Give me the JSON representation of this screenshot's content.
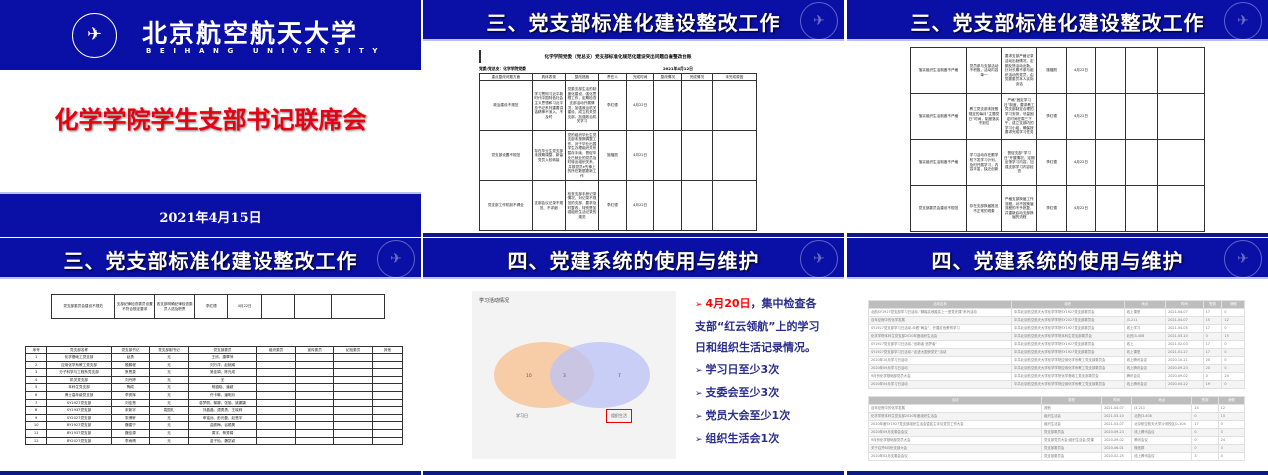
{
  "slide1": {
    "university_cn": "北京航空航天大学",
    "university_en": "BEIHANG UNIVERSITY",
    "title": "化学学院学生支部书记联席会",
    "date": "2021年4月15日",
    "colors": {
      "band": "#0a0fa6",
      "title": "#e60012"
    }
  },
  "slide2": {
    "header": "三、党支部标准化建设整改工作",
    "doc_title": "化学学院党委（党总支）党支部标准化规范化建设突出问题自查整改台账",
    "unit": "党委/党总支：化学学院党委",
    "doc_date": "2021年4月12日",
    "columns": [
      "重点整改问题方面",
      "具体表现",
      "整改措施",
      "责任人",
      "完成时间",
      "整改情况",
      "完成情况",
      "未完成原因"
    ],
    "rows": [
      [
        "政治建设不规范",
        "学习贯彻习近平新时代中国特色社会主义思想和习近平总书记系列重要讲话精神不深入、不及时",
        "党委支部生活的制度化建设，强化思想工作，定期检查支部活动开展情况，加强政治机关建设，成立机关党支部，加强政治机关学习",
        "李红德",
        "4月22日",
        "",
        "",
        ""
      ],
      [
        "党支部设置不规范",
        "存在毕业生党支部未按期调整、新留党员入校转接",
        "党的组织毕业生党支部未按期调整工作，对于毕业出国学生办理组织关系暂存手续，督促毕业已就业的党员及时转出组织关系，并核党员e先锋上的所在数据更新工作",
        "施福丽",
        "4月22日",
        "",
        "",
        ""
      ],
      [
        "党支部工作机制不健全",
        "支部会议记录不规范、不详细",
        "检查支部手册记录情况，对记录不规范的支部，要求及时整改，特别是加强组织生活记录的规范",
        "李红德",
        "4月22日",
        "",
        "",
        ""
      ]
    ]
  },
  "slide3": {
    "header": "三、党支部标准化建设整改工作",
    "rows": [
      [
        "落实组织生活制度不严格",
        "党员参与支部活动不积极，活动内容单一",
        "要求支部严格记录活动出勤情况，定期反馈活动出勤，针对长期不参与组织活动的党员，由党委委员本人实际谈话",
        "施福丽",
        "4月22日",
        "",
        "",
        ""
      ],
      [
        "落实组织生活制度不严格",
        "教工党支部未按照规定的每月“主题党日”时间，制度落实不到位",
        "严格“固定学习日”制度，要求教工党支部制定合理的学习安排，尽量固定时间在周三下午，成立支部内的学习小组，确保按要求完成学习任务",
        "李红德",
        "4月22日",
        "",
        "",
        ""
      ],
      [
        "落实组织生活制度不严格",
        "学习活动存在跟学校下发学习计划，及时开展学习，内容丰富，缺乏创新",
        "督促支部“学习日”开展情况，定期反馈学习内容，加强支部学习内容检查",
        "李红德",
        "4月22日",
        "",
        "",
        ""
      ],
      [
        "党支部委员会建设不规范",
        "存在支部换届推迟不正常的现象",
        "严格支部换届工作流程，对不按换届流程的不予批复，并重新启动支部换届的流程",
        "李红德",
        "4月22日",
        "",
        "",
        ""
      ]
    ]
  },
  "slide4": {
    "header": "三、党支部标准化建设整改工作",
    "top_row": [
      "党支部委员会建设不规范",
      "支部纪律检查委员设置不符合规定要求",
      "各支部明确纪律检查委员人选及职责",
      "李红德",
      "4月22日",
      "",
      "",
      ""
    ],
    "columns": [
      "序号",
      "党支部名称",
      "党支部书记",
      "党支部副书记",
      "党支部委员",
      "组织委员",
      "宣传委员",
      "纪检委员",
      "其他"
    ],
    "rows": [
      [
        "1",
        "化学基础工党支部",
        "赵勇",
        "无",
        "王欣、唐翠萍",
        "",
        "",
        "",
        ""
      ],
      [
        "2",
        "应用化学系教工党支部",
        "殷鹏程",
        "无",
        "刘万洋、赵婉威",
        "",
        "",
        "",
        ""
      ],
      [
        "3",
        "分子科学与工程系党支部",
        "蔡恩泉",
        "无",
        "吴佳娟、陈光成",
        "",
        "",
        "",
        ""
      ],
      [
        "4",
        "机关党支部",
        "刘丹婷",
        "无",
        "无",
        "",
        "",
        "",
        ""
      ],
      [
        "5",
        "本科生党支部",
        "陶成",
        "无",
        "杨潞晓、潘颖",
        "",
        "",
        "",
        ""
      ],
      [
        "6",
        "博士高年级党支部",
        "李秀辉",
        "无",
        "许卡琳、潘明月",
        "",
        "",
        "",
        ""
      ],
      [
        "7",
        "SY1927党支部",
        "刘佳慧",
        "无",
        "葛梦丽、黎娜、张旭、姚娜婕",
        "",
        "",
        "",
        ""
      ],
      [
        "8",
        "SY1937党支部",
        "宋新宇",
        "袁国礼",
        "刘晶晶、谭勇勇、王晓莉",
        "",
        "",
        "",
        ""
      ],
      [
        "9",
        "SY2027党支部",
        "张博轩",
        "无",
        "申铭远、彭光磊、赵慧宇",
        "",
        "",
        "",
        ""
      ],
      [
        "10",
        "BY1927党支部",
        "魏建宁",
        "无",
        "曲秀梅、谷顺昊",
        "",
        "",
        "",
        ""
      ],
      [
        "11",
        "BY1937党支部",
        "魏佳源",
        "无",
        "周宇、蔡秀娟",
        "",
        "",
        "",
        ""
      ],
      [
        "12",
        "BY2027党支部",
        "李雨晴",
        "无",
        "苗子怡、魏凯颖",
        "",
        "",
        "",
        ""
      ]
    ]
  },
  "slide5": {
    "header": "四、党建系统的使用与维护",
    "chart_data": {
      "type": "venn",
      "title": "学习活动情况",
      "sets": [
        {
          "name": "学习日",
          "only": 10,
          "color": "#f8c08f"
        },
        {
          "name": "组织生活",
          "only": 7,
          "color": "#b9c2f5"
        }
      ],
      "intersection": 3
    },
    "bullets": [
      {
        "arrow": "➢",
        "date": "4月20日",
        "text": "，集中检查各支部“红云领航”上的学习日和组织生活记录情况。"
      },
      {
        "arrow": "➢",
        "text": "学习日至少3次"
      },
      {
        "arrow": "➢",
        "text": "支委会至少3次"
      },
      {
        "arrow": "➢",
        "text": "党员大会至少1次"
      },
      {
        "arrow": "➢",
        "text": "组织生活会1次"
      }
    ],
    "colors": {
      "text": "#2a2e8c",
      "date": "#ff0000"
    }
  },
  "slide6": {
    "header": "四、党建系统的使用与维护",
    "table1": {
      "columns": [
        "活动名称",
        "组织",
        "地点",
        "时间",
        "签到",
        "请假"
      ],
      "rows": [
        [
          "北航SY1927党支部学习日活动-“脚踏实地踏实上一堂党史课”系列活动",
          "中共北京航空航天大学化学学院SY1927党支部委员会",
          "线上课堂",
          "2021-04-07",
          "17",
          "0"
        ],
        [
          "百年征程中的化学发展",
          "中共北京航空航天大学化学学院SY2027党支部委员会",
          "J3-211",
          "2021-04-07",
          "15",
          "12"
        ],
        [
          "SY1927党支部学习日活动-众看“两会”，开展红色教育学习",
          "中共北京航空航天大学化学学院SY1927党支部委员会",
          "线上学习",
          "2021-04-05",
          "17",
          "0"
        ],
        [
          "化学学院本科生党支部2020年度组织生活会",
          "中共北京航空航天大学化学学院本科生党支部委员会",
          "北药J3-408",
          "2021-03-10",
          "0",
          "15"
        ],
        [
          "SY1927党支部学习日活动-“创新者·追梦者”",
          "中共北京航空航天大学化学学院SY1927党支部委员会",
          "线上",
          "2021-02-03",
          "17",
          "0"
        ],
        [
          "SY1927党支部学习日活动-“走进大国侨党史”活动",
          "中共北京航空航天大学化学学院SY1927党支部委员会",
          "线上课堂",
          "2021-01-27",
          "17",
          "0"
        ],
        [
          "2020年10月学习日活动",
          "中共北京航空航天大学化学学院应用化学系教工党支部委员会",
          "线上腾讯会议",
          "2020-10-21",
          "20",
          "0"
        ],
        [
          "2020年09月学习日活动",
          "中共北京航空航天大学化学学院应用化学系教工党支部委员会",
          "线上腾讯会议",
          "2020-09-23",
          "20",
          "0"
        ],
        [
          "9月份化学基础部党员大会",
          "中共北京航空航天大学化学学院化学基础工党支部委员会",
          "腾讯会议",
          "2020-09-02",
          "0",
          "24"
        ],
        [
          "2020年04月学习日活动",
          "中共北京航空航天大学化学学院应用化学系教工党支部委员会",
          "线上腾讯会议",
          "2020-04-22",
          "19",
          "0"
        ]
      ]
    },
    "table2": {
      "columns": [
        "活动",
        "类型",
        "时间",
        "地点",
        "签到",
        "请假"
      ],
      "rows": [
        [
          "百年征程中的化学发展",
          "其他",
          "2021-04-07",
          "J3-211",
          "15",
          "12"
        ],
        [
          "化学学院本科生党支部2020年度组织生活会",
          "组织生活会",
          "2021-03-10",
          "北药J3-408",
          "0",
          "15"
        ],
        [
          "2020年度SY1927党支部组织生活会暨民主评议党员工作大会",
          "组织生活会",
          "2021-03-07",
          "北京航空航天大学沙河校区J1-104",
          "17",
          "0"
        ],
        [
          "2020年09月支委会会议",
          "党支部委员会",
          "2020-09-23",
          "线上腾讯会议",
          "0",
          "3"
        ],
        [
          "9月份化学基础部党员大会",
          "党支部党员大会;组织生活会;党课",
          "2020-09-02",
          "腾讯会议",
          "0",
          "24"
        ],
        [
          "关于召开6月份支部大会",
          "党支部委员会",
          "2020-06-01",
          "微信群",
          "0",
          "3"
        ],
        [
          "2020年02月支委会会议",
          "党支部委员会",
          "2020-02-25",
          "线上腾讯会议",
          "3",
          "0"
        ]
      ]
    }
  }
}
